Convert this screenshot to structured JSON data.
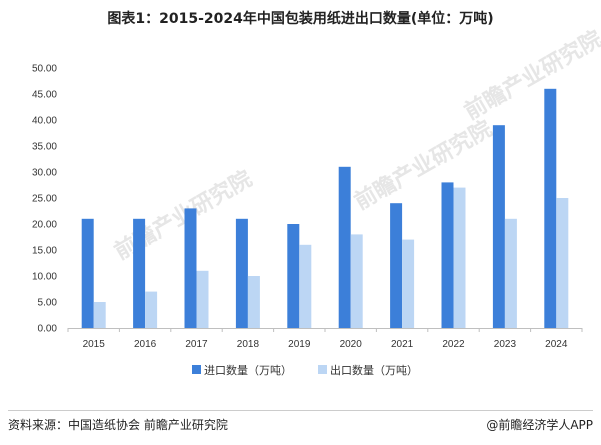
{
  "title": "图表1：2015-2024年中国包装用纸进出口数量(单位：万吨)",
  "chart_data": {
    "type": "bar",
    "categories": [
      "2015",
      "2016",
      "2017",
      "2018",
      "2019",
      "2020",
      "2021",
      "2022",
      "2023",
      "2024"
    ],
    "series": [
      {
        "name": "进口数量（万吨）",
        "color": "#3c7fd9",
        "values": [
          21,
          21,
          23,
          21,
          20,
          31,
          24,
          28,
          39,
          46
        ]
      },
      {
        "name": "出口数量（万吨）",
        "color": "#bcd6f4",
        "values": [
          5,
          7,
          11,
          10,
          16,
          18,
          17,
          27,
          21,
          25
        ]
      }
    ],
    "ylim": [
      0,
      50
    ],
    "yticks": [
      "0.00",
      "5.00",
      "10.00",
      "15.00",
      "20.00",
      "25.00",
      "30.00",
      "35.00",
      "40.00",
      "45.00",
      "50.00"
    ],
    "grid": false,
    "legend": "bottom-center"
  },
  "watermark": "前瞻产业研究院",
  "footer": {
    "source": "资料来源：中国造纸协会 前瞻产业研究院",
    "brand": "@前瞻经济学人APP"
  }
}
